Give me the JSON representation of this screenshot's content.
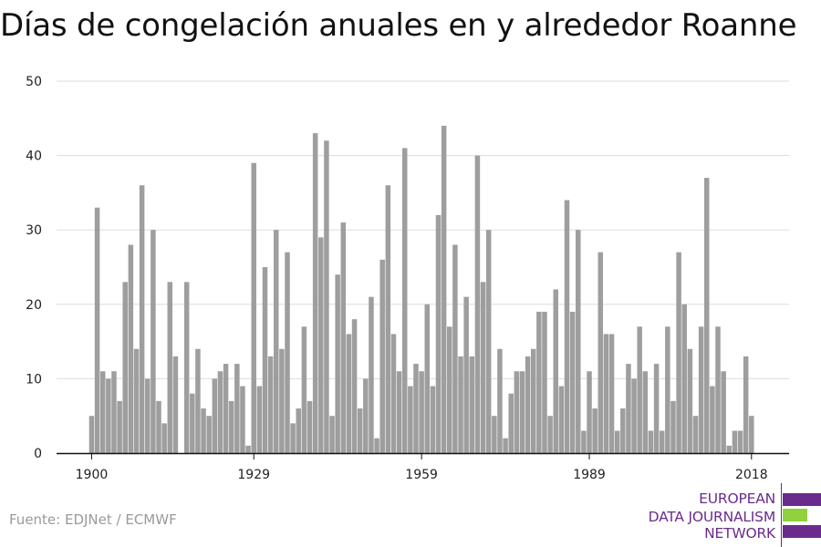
{
  "chart_data": {
    "type": "bar",
    "title": "Días de congelación anuales en y alrededor Roanne",
    "xlabel": "",
    "ylabel": "",
    "ylim": [
      0,
      50
    ],
    "yticks": [
      0,
      10,
      20,
      30,
      40,
      50
    ],
    "xticks": [
      "1900",
      "1929",
      "1959",
      "1989",
      "2018"
    ],
    "grid": true,
    "bar_color": "#9e9e9e",
    "x": [
      1900,
      1901,
      1902,
      1903,
      1904,
      1905,
      1906,
      1907,
      1908,
      1909,
      1910,
      1911,
      1912,
      1913,
      1914,
      1915,
      1916,
      1917,
      1918,
      1919,
      1920,
      1921,
      1922,
      1923,
      1924,
      1925,
      1926,
      1927,
      1928,
      1929,
      1930,
      1931,
      1932,
      1933,
      1934,
      1935,
      1936,
      1937,
      1938,
      1939,
      1940,
      1941,
      1942,
      1943,
      1944,
      1945,
      1946,
      1947,
      1948,
      1949,
      1950,
      1951,
      1952,
      1953,
      1954,
      1955,
      1956,
      1957,
      1958,
      1959,
      1960,
      1961,
      1962,
      1963,
      1964,
      1965,
      1966,
      1967,
      1968,
      1969,
      1970,
      1971,
      1972,
      1973,
      1974,
      1975,
      1976,
      1977,
      1978,
      1979,
      1980,
      1981,
      1982,
      1983,
      1984,
      1985,
      1986,
      1987,
      1988,
      1989,
      1990,
      1991,
      1992,
      1993,
      1994,
      1995,
      1996,
      1997,
      1998,
      1999,
      2000,
      2001,
      2002,
      2003,
      2004,
      2005,
      2006,
      2007,
      2008,
      2009,
      2010,
      2011,
      2012,
      2013,
      2014,
      2015,
      2016,
      2017,
      2018
    ],
    "values": [
      5,
      33,
      11,
      10,
      11,
      7,
      23,
      28,
      14,
      36,
      10,
      30,
      7,
      4,
      23,
      13,
      0,
      23,
      8,
      14,
      6,
      5,
      10,
      11,
      12,
      7,
      12,
      9,
      1,
      39,
      9,
      25,
      13,
      30,
      14,
      27,
      4,
      6,
      17,
      7,
      43,
      29,
      42,
      5,
      24,
      31,
      16,
      18,
      6,
      10,
      21,
      2,
      26,
      36,
      16,
      11,
      41,
      9,
      12,
      11,
      20,
      9,
      32,
      44,
      17,
      28,
      13,
      21,
      13,
      40,
      23,
      30,
      5,
      14,
      2,
      8,
      11,
      11,
      13,
      14,
      19,
      19,
      5,
      22,
      9,
      34,
      19,
      30,
      3,
      11,
      6,
      27,
      16,
      16,
      3,
      6,
      12,
      10,
      17,
      11,
      3,
      12,
      3,
      17,
      7,
      27,
      20,
      14,
      5,
      17,
      37,
      9,
      17,
      11,
      1,
      3,
      3,
      13,
      5
    ]
  },
  "source": "Fuente: EDJNet / ECMWF",
  "logo": {
    "line1": "EUROPEAN",
    "line2": "DATA JOURNALISM",
    "line3": "NETWORK",
    "purple": "#6a2c8c",
    "green": "#8fd13f"
  }
}
